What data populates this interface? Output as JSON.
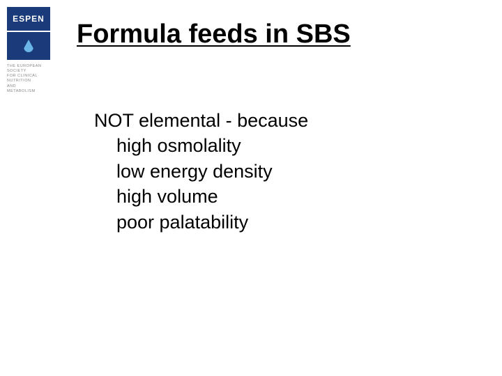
{
  "logo": {
    "text": "ESPEN",
    "caption_lines": [
      "THE EUROPEAN",
      "SOCIETY",
      "FOR CLINICAL",
      "NUTRITION",
      "AND",
      "METABOLISM"
    ],
    "bg_color": "#1a3a7a",
    "drop_color": "#6bb5e8",
    "caption_color": "#888888"
  },
  "title": "Formula feeds in SBS",
  "main_line": "NOT elemental - because",
  "sub_items": [
    "high osmolality",
    "low energy density",
    "high volume",
    "poor palatability"
  ],
  "colors": {
    "background": "#ffffff",
    "text": "#000000"
  },
  "typography": {
    "title_fontsize": 38,
    "body_fontsize": 27,
    "font_family": "Arial"
  }
}
